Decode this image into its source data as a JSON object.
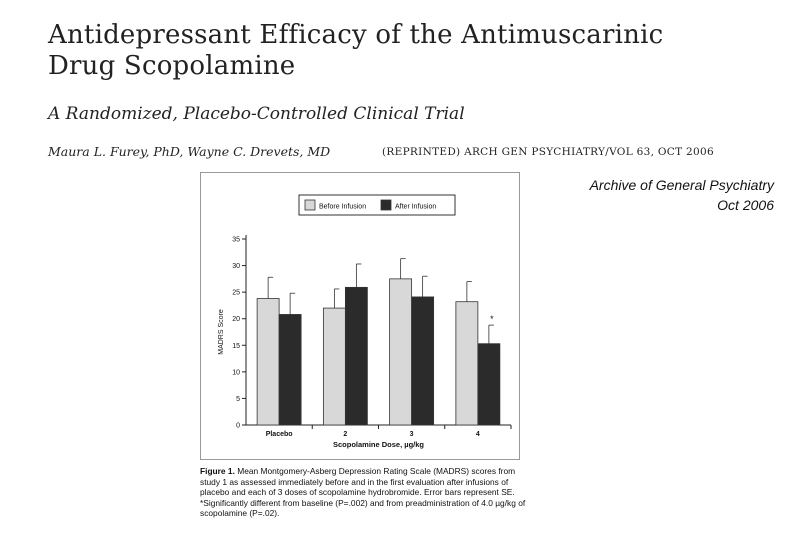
{
  "paper": {
    "title_line1": "Antidepressant Efficacy of the Antimuscarinic",
    "title_line2": "Drug Scopolamine",
    "subtitle": "A Randomized, Placebo-Controlled Clinical Trial",
    "authors": "Maura L. Furey, PhD, Wayne C. Drevets, MD",
    "citation": "(REPRINTED) ARCH GEN PSYCHIATRY/VOL 63,  OCT 2006"
  },
  "side_note": {
    "line1": "Archive of General Psychiatry",
    "line2": "Oct 2006"
  },
  "caption": {
    "label": "Figure 1.",
    "text": "Mean Montgomery-Asberg Depression Rating Scale (MADRS) scores from study 1 as assessed immediately before and in the first evaluation after infusions of placebo and each of 3 doses of scopolamine hydrobromide. Error bars represent SE. *Significantly different from baseline (P=.002) and from preadministration of 4.0 µg/kg of scopolamine (P=.02)."
  },
  "colors": {
    "before": "#d8d8d8",
    "after": "#2b2b2b",
    "axis": "#222222"
  },
  "chart_data": {
    "type": "bar",
    "title": "",
    "xlabel": "Scopolamine Dose, µg/kg",
    "ylabel": "MADRS Score",
    "ylim": [
      0,
      35
    ],
    "yticks": [
      0,
      5,
      10,
      15,
      20,
      25,
      30,
      35
    ],
    "categories": [
      "Placebo",
      "2",
      "3",
      "4"
    ],
    "legend": "top",
    "series": [
      {
        "name": "Before Infusion",
        "values": [
          23.8,
          22.0,
          27.5,
          23.2
        ],
        "errors": [
          4.0,
          3.6,
          3.8,
          3.8
        ]
      },
      {
        "name": "After Infusion",
        "values": [
          20.8,
          25.9,
          24.1,
          15.3
        ],
        "errors": [
          4.0,
          4.4,
          3.9,
          3.5
        ]
      }
    ],
    "annotations": [
      {
        "category": "4",
        "series": "After Infusion",
        "text": "*"
      }
    ]
  }
}
